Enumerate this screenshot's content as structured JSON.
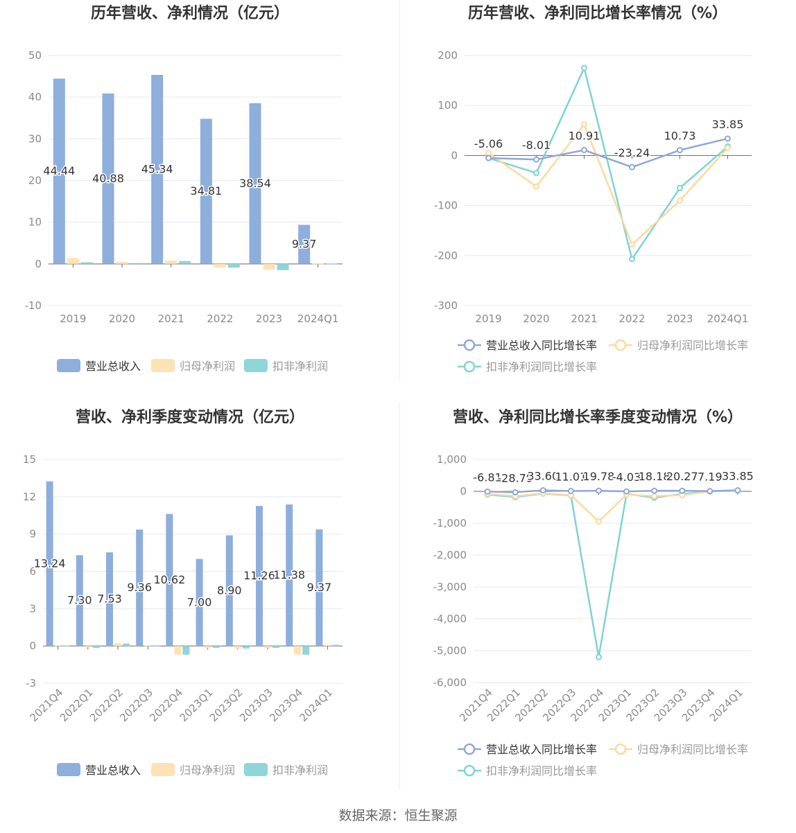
{
  "colors": {
    "revenue": "#8eaedc",
    "parent_profit": "#fde3b4",
    "deducted_profit": "#8fd6d9",
    "line_revenue": "#8ea8da",
    "line_parent": "#fcd99f",
    "line_deducted": "#7fd3d5",
    "grid": "#e6e9f2",
    "axis_text": "#8a8a8a",
    "title": "#333333"
  },
  "source": "数据来源：恒生聚源",
  "chart_data": [
    {
      "id": "annual_values",
      "type": "bar",
      "title": "历年营收、净利情况（亿元）",
      "categories": [
        "2019",
        "2020",
        "2021",
        "2022",
        "2023",
        "2024Q1"
      ],
      "ylim": [
        -10,
        50
      ],
      "yticks": [
        -10,
        0,
        10,
        20,
        30,
        40,
        50
      ],
      "series": [
        {
          "name": "营业总收入",
          "values": [
            44.44,
            40.88,
            45.34,
            34.81,
            38.54,
            9.37
          ]
        },
        {
          "name": "归母净利润",
          "values": [
            1.4,
            0.5,
            0.8,
            -0.8,
            -1.4,
            0.1
          ]
        },
        {
          "name": "扣非净利润",
          "values": [
            0.4,
            0.2,
            0.7,
            -0.9,
            -1.5,
            0.1
          ]
        }
      ],
      "value_labels": [
        "44.44",
        "40.88",
        "45.34",
        "34.81",
        "38.54",
        "9.37"
      ],
      "legend": [
        "营业总收入",
        "归母净利润",
        "扣非净利润"
      ]
    },
    {
      "id": "annual_growth",
      "type": "line",
      "title": "历年营收、净利同比增长率情况（%）",
      "categories": [
        "2019",
        "2020",
        "2021",
        "2022",
        "2023",
        "2024Q1"
      ],
      "ylim": [
        -300,
        200
      ],
      "yticks": [
        -300,
        -200,
        -100,
        0,
        100,
        200
      ],
      "series": [
        {
          "name": "营业总收入同比增长率",
          "values": [
            -5.06,
            -8.01,
            10.91,
            -23.24,
            10.73,
            33.85
          ]
        },
        {
          "name": "归母净利润同比增长率",
          "values": [
            5,
            -62,
            62,
            -178,
            -90,
            15
          ]
        },
        {
          "name": "扣非净利润同比增长率",
          "values": [
            -5,
            -35,
            175,
            -207,
            -65,
            18
          ]
        }
      ],
      "value_labels": [
        "-5.06",
        "-8.01",
        "10.91",
        "-23.24",
        "10.73",
        "33.85"
      ],
      "legend": [
        "营业总收入同比增长率",
        "归母净利润同比增长率",
        "扣非净利润同比增长率"
      ]
    },
    {
      "id": "quarterly_values",
      "type": "bar",
      "title": "营收、净利季度变动情况（亿元）",
      "categories": [
        "2021Q4",
        "2022Q1",
        "2022Q2",
        "2022Q3",
        "2022Q4",
        "2023Q1",
        "2023Q2",
        "2023Q3",
        "2023Q4",
        "2024Q1"
      ],
      "ylim": [
        -3,
        15
      ],
      "yticks": [
        -3,
        0,
        3,
        6,
        9,
        12,
        15
      ],
      "series": [
        {
          "name": "营业总收入",
          "values": [
            13.24,
            7.3,
            7.53,
            9.36,
            10.62,
            7.0,
            8.9,
            11.26,
            11.38,
            9.37
          ]
        },
        {
          "name": "归母净利润",
          "values": [
            0.05,
            -0.1,
            0.25,
            0.05,
            -0.7,
            -0.15,
            -0.2,
            -0.15,
            -0.7,
            0.1
          ]
        },
        {
          "name": "扣非净利润",
          "values": [
            0.02,
            -0.15,
            0.2,
            0.02,
            -0.7,
            -0.15,
            -0.2,
            -0.15,
            -0.7,
            0.1
          ]
        }
      ],
      "value_labels": [
        "13.24",
        "7.30",
        "7.53",
        "9.36",
        "10.62",
        "7.00",
        "8.90",
        "11.26",
        "11.38",
        "9.37"
      ],
      "legend": [
        "营业总收入",
        "归母净利润",
        "扣非净利润"
      ]
    },
    {
      "id": "quarterly_growth",
      "type": "line",
      "title": "营收、净利同比增长率季度变动情况（%）",
      "categories": [
        "2021Q4",
        "2022Q1",
        "2022Q2",
        "2022Q3",
        "2022Q4",
        "2023Q1",
        "2023Q2",
        "2023Q3",
        "2023Q4",
        "2024Q1"
      ],
      "ylim": [
        -6000,
        1000
      ],
      "yticks": [
        -6000,
        -5000,
        -4000,
        -3000,
        -2000,
        -1000,
        0,
        1000
      ],
      "ytick_labels": [
        "-6,000",
        "-5,000",
        "-4,000",
        "-3,000",
        "-2,000",
        "-1,000",
        "0",
        "1,000"
      ],
      "series": [
        {
          "name": "营业总收入同比增长率",
          "values": [
            -6.81,
            -28.79,
            33.6,
            11.01,
            19.78,
            -4.03,
            18.18,
            20.27,
            7.19,
            33.85
          ]
        },
        {
          "name": "归母净利润同比增长率",
          "values": [
            -80,
            -150,
            -60,
            -120,
            -950,
            -100,
            -150,
            -120,
            0,
            20
          ]
        },
        {
          "name": "扣非净利润同比增长率",
          "values": [
            -100,
            -180,
            -70,
            -130,
            -5200,
            -80,
            -200,
            -80,
            0,
            15
          ]
        }
      ],
      "value_labels": [
        "-6.81",
        "-28.79",
        "33.60",
        "11.01",
        "19.78",
        "-4.03",
        "18.18",
        "20.27",
        "7.19",
        "33.85"
      ],
      "legend": [
        "营业总收入同比增长率",
        "归母净利润同比增长率",
        "扣非净利润同比增长率"
      ]
    }
  ]
}
